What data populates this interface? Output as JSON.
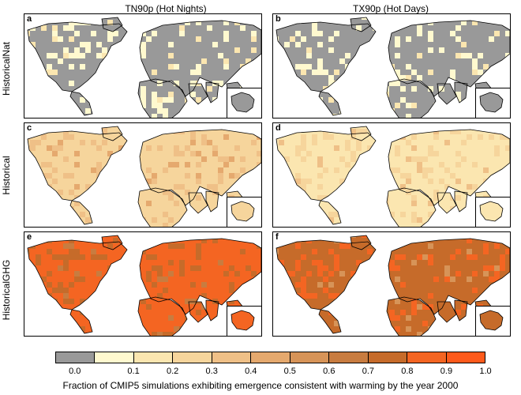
{
  "columns": [
    "TN90p (Hot Nights)",
    "TX90p (Hot Days)"
  ],
  "rows": [
    "HistoricalNat",
    "Historical",
    "HistoricalGHG"
  ],
  "panels": [
    {
      "letter": "a",
      "dominant_class": 0,
      "accent_class": 1
    },
    {
      "letter": "b",
      "dominant_class": 0,
      "accent_class": 1
    },
    {
      "letter": "c",
      "dominant_class": 3,
      "accent_class": 4
    },
    {
      "letter": "d",
      "dominant_class": 2,
      "accent_class": 3
    },
    {
      "letter": "e",
      "dominant_class": 9,
      "accent_class": 8
    },
    {
      "letter": "f",
      "dominant_class": 8,
      "accent_class": 9
    }
  ],
  "colorbar": {
    "colors": [
      "#999999",
      "#fff9cf",
      "#fbe6b0",
      "#f6d59c",
      "#efc087",
      "#e5a96e",
      "#d79458",
      "#c87c40",
      "#c66b2a",
      "#f46522",
      "#fe5a1b"
    ],
    "ticks": [
      "0.0",
      "0.1",
      "0.2",
      "0.3",
      "0.4",
      "0.5",
      "0.6",
      "0.7",
      "0.8",
      "0.9",
      "1.0"
    ],
    "caption": "Fraction of CMIP5 simulations exhibiting emergence consistent with warming by the year 2000"
  }
}
